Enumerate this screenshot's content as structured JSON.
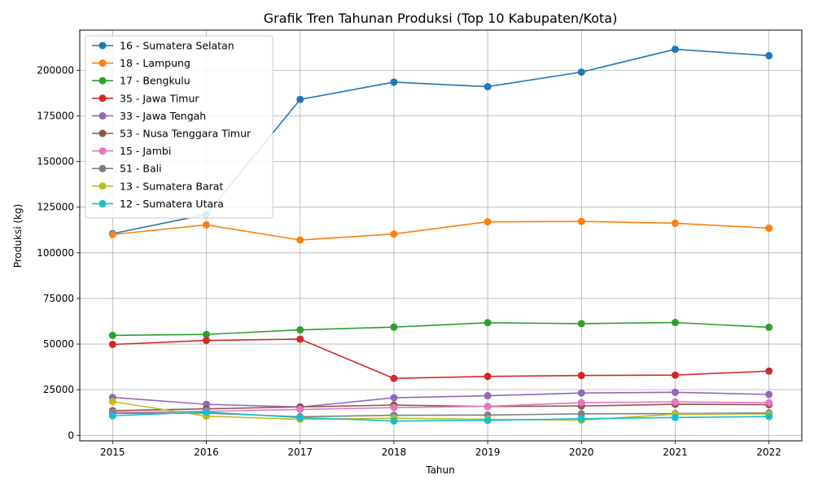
{
  "chart_data": {
    "type": "line",
    "title": "Grafik Tren Tahunan Produksi (Top 10 Kabupaten/Kota)",
    "xlabel": "Tahun",
    "ylabel": "Produksi (kg)",
    "x": [
      2015,
      2016,
      2017,
      2018,
      2019,
      2020,
      2021,
      2022
    ],
    "xlim": [
      2014.65,
      2022.35
    ],
    "ylim": [
      -3000,
      222000
    ],
    "y_ticks": [
      0,
      25000,
      50000,
      75000,
      100000,
      125000,
      150000,
      175000,
      200000
    ],
    "grid": true,
    "legend_position": "top-left",
    "series": [
      {
        "name": "16 - Sumatera Selatan",
        "color": "#1f77b4",
        "values": [
          110500,
          121000,
          184000,
          193500,
          191000,
          199000,
          211500,
          208000
        ]
      },
      {
        "name": "18 - Lampung",
        "color": "#ff7f0e",
        "values": [
          110000,
          115300,
          107000,
          110300,
          117000,
          117200,
          116200,
          113500
        ]
      },
      {
        "name": "17 - Bengkulu",
        "color": "#2ca02c",
        "values": [
          54800,
          55300,
          57800,
          59300,
          61700,
          61200,
          61800,
          59200
        ]
      },
      {
        "name": "35 - Jawa Timur",
        "color": "#d62728",
        "values": [
          49800,
          52000,
          52700,
          31200,
          32300,
          32800,
          33000,
          35200
        ]
      },
      {
        "name": "33 - Jawa Tengah",
        "color": "#9467bd",
        "values": [
          20800,
          17000,
          15500,
          20600,
          21700,
          23200,
          23600,
          22400
        ]
      },
      {
        "name": "53 - Nusa Tenggara Timur",
        "color": "#8c564b",
        "values": [
          13500,
          14500,
          15600,
          16600,
          15800,
          16100,
          17000,
          16800
        ]
      },
      {
        "name": "15 - Jambi",
        "color": "#e377c2",
        "values": [
          12500,
          13200,
          14200,
          15200,
          15900,
          17900,
          18300,
          17900
        ]
      },
      {
        "name": "51 - Bali",
        "color": "#7f7f7f",
        "values": [
          12000,
          12200,
          10200,
          11000,
          11100,
          11800,
          11900,
          12300
        ]
      },
      {
        "name": "13 - Sumatera Barat",
        "color": "#bcbd22",
        "values": [
          18500,
          10500,
          8800,
          9400,
          8800,
          8300,
          11600,
          11700
        ]
      },
      {
        "name": "12 - Sumatera Utara",
        "color": "#17becf",
        "values": [
          10700,
          12800,
          9700,
          7900,
          8200,
          9100,
          9800,
          10300
        ]
      }
    ]
  },
  "grid_color": "#b0b0b0"
}
